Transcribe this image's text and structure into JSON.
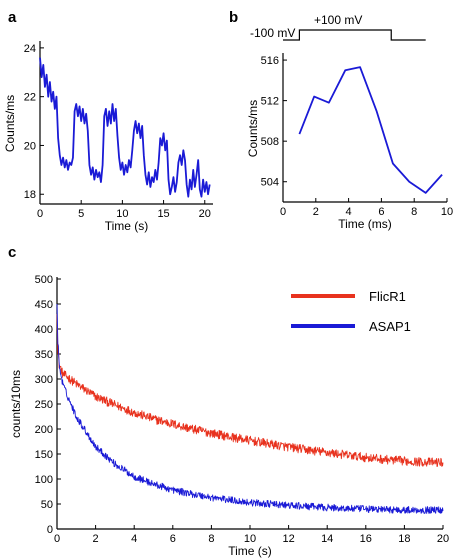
{
  "colors": {
    "blue": "#1a1ad6",
    "red": "#e8321e",
    "axis": "#000000"
  },
  "chart_data": [
    {
      "panel": "a",
      "type": "line",
      "xlabel": "Time (s)",
      "ylabel": "Counts/ms",
      "xlim": [
        0,
        21
      ],
      "ylim": [
        17.6,
        24.2
      ],
      "xticks": [
        0,
        5,
        10,
        15,
        20
      ],
      "yticks": [
        18,
        20,
        22,
        24
      ],
      "series": [
        {
          "color": "blue",
          "x": [
            0,
            0.2,
            0.4,
            0.6,
            0.8,
            1.0,
            1.2,
            1.4,
            1.6,
            1.8,
            2.0,
            2.2,
            2.4,
            2.6,
            2.8,
            3.0,
            3.2,
            3.4,
            3.6,
            3.8,
            4.0,
            4.2,
            4.4,
            4.6,
            4.8,
            5.0,
            5.2,
            5.4,
            5.6,
            5.8,
            6.0,
            6.2,
            6.4,
            6.6,
            6.8,
            7.0,
            7.2,
            7.4,
            7.6,
            7.8,
            8.0,
            8.2,
            8.4,
            8.6,
            8.8,
            9.0,
            9.2,
            9.4,
            9.6,
            9.8,
            10.0,
            10.2,
            10.4,
            10.6,
            10.8,
            11.0,
            11.2,
            11.4,
            11.6,
            11.8,
            12.0,
            12.2,
            12.4,
            12.6,
            12.8,
            13.0,
            13.2,
            13.4,
            13.6,
            13.8,
            14.0,
            14.2,
            14.4,
            14.6,
            14.8,
            15.0,
            15.2,
            15.4,
            15.6,
            15.8,
            16.0,
            16.2,
            16.4,
            16.6,
            16.8,
            17.0,
            17.2,
            17.4,
            17.6,
            17.8,
            18.0,
            18.2,
            18.4,
            18.6,
            18.8,
            19.0,
            19.2,
            19.4,
            19.6,
            19.8,
            20.0,
            20.2,
            20.4,
            20.6
          ],
          "y": [
            23.6,
            22.8,
            23.3,
            22.4,
            22.9,
            22.0,
            22.6,
            21.8,
            22.2,
            21.5,
            22.0,
            20.3,
            19.6,
            19.2,
            19.5,
            19.1,
            19.4,
            19.0,
            19.3,
            19.2,
            19.5,
            21.4,
            21.7,
            21.2,
            21.6,
            21.0,
            21.5,
            20.9,
            21.3,
            20.6,
            19.2,
            18.8,
            19.1,
            18.6,
            19.0,
            18.7,
            18.9,
            18.5,
            19.2,
            21.2,
            21.5,
            20.8,
            21.4,
            20.9,
            21.7,
            21.0,
            21.5,
            20.4,
            19.5,
            19.0,
            19.3,
            18.8,
            19.2,
            18.9,
            19.4,
            19.1,
            19.8,
            20.6,
            21.0,
            20.5,
            20.9,
            20.3,
            20.8,
            19.6,
            18.8,
            18.4,
            18.9,
            18.3,
            18.7,
            18.5,
            19.0,
            18.6,
            19.3,
            20.3,
            20.0,
            20.5,
            19.8,
            20.2,
            18.6,
            18.0,
            18.3,
            18.7,
            18.1,
            18.5,
            19.3,
            19.6,
            19.2,
            19.8,
            19.4,
            18.4,
            17.9,
            18.6,
            18.2,
            19.0,
            18.3,
            18.8,
            19.4,
            18.2,
            17.9,
            18.6,
            18.1,
            18.5,
            18.0,
            18.4
          ]
        }
      ]
    },
    {
      "panel": "b",
      "type": "line",
      "xlabel": "Time (ms)",
      "ylabel": "Counts/ms",
      "xlim": [
        0,
        10
      ],
      "ylim": [
        502,
        516.5
      ],
      "xticks": [
        0,
        2,
        4,
        6,
        8,
        10
      ],
      "yticks": [
        504,
        508,
        512,
        516
      ],
      "voltage_protocol": {
        "low_label": "-100 mV",
        "high_label": "+100 mV",
        "step_start": 1.0,
        "step_end": 6.6
      },
      "series": [
        {
          "color": "blue",
          "x": [
            1.0,
            1.9,
            2.8,
            3.8,
            4.7,
            5.7,
            6.7,
            7.7,
            8.7,
            9.7
          ],
          "y": [
            508.7,
            512.4,
            511.8,
            515.0,
            515.3,
            511.0,
            505.8,
            504.0,
            502.9,
            504.7
          ]
        }
      ]
    },
    {
      "panel": "c",
      "type": "line",
      "xlabel": "Time (s)",
      "ylabel": "counts/10ms",
      "xlim": [
        0,
        20
      ],
      "ylim": [
        0,
        500
      ],
      "xticks": [
        0,
        2,
        4,
        6,
        8,
        10,
        12,
        14,
        16,
        18,
        20
      ],
      "yticks": [
        0,
        50,
        100,
        150,
        200,
        250,
        300,
        350,
        400,
        450,
        500
      ],
      "legend_position": "top-right",
      "series": [
        {
          "name": "FlicR1",
          "color": "red",
          "x": [
            0,
            0.1,
            0.3,
            0.5,
            1,
            2,
            3,
            4,
            5,
            6,
            7,
            8,
            9,
            10,
            11,
            12,
            13,
            14,
            15,
            16,
            17,
            18,
            19,
            20
          ],
          "y": [
            430,
            330,
            310,
            305,
            290,
            265,
            248,
            233,
            220,
            210,
            200,
            192,
            184,
            177,
            170,
            164,
            158,
            153,
            148,
            143,
            139,
            136,
            134,
            133
          ]
        },
        {
          "name": "ASAP1",
          "color": "blue",
          "x": [
            0,
            0.1,
            0.3,
            0.5,
            1,
            2,
            3,
            4,
            5,
            6,
            7,
            8,
            9,
            10,
            11,
            12,
            13,
            14,
            15,
            16,
            17,
            18,
            19,
            20
          ],
          "y": [
            450,
            330,
            290,
            270,
            225,
            165,
            130,
            105,
            90,
            78,
            70,
            63,
            58,
            53,
            50,
            47,
            45,
            43,
            41,
            40,
            39,
            38,
            38,
            38
          ]
        }
      ]
    }
  ]
}
